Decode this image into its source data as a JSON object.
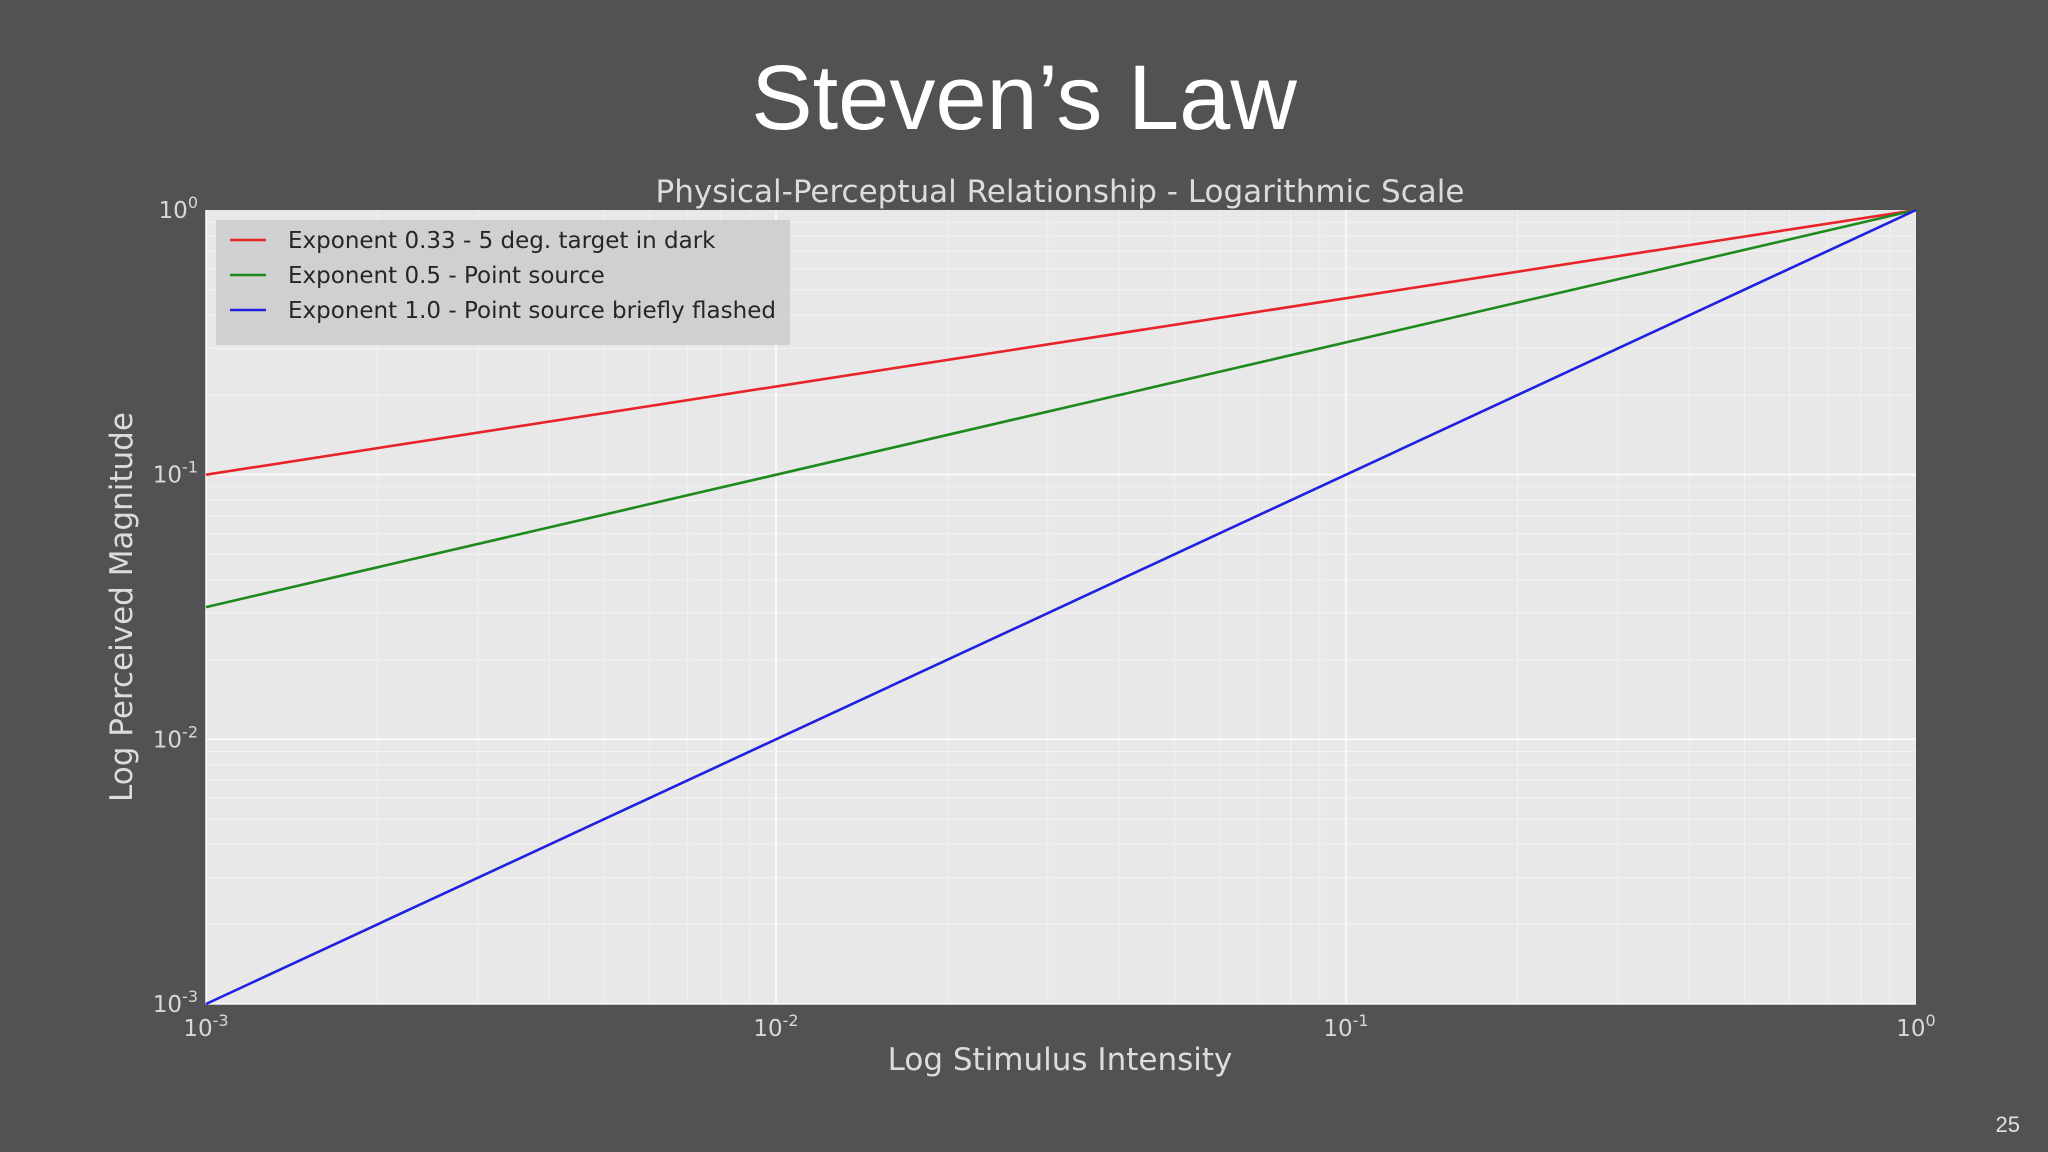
{
  "slide": {
    "title": "Steven’s Law",
    "page_number": "25",
    "background": "#525254"
  },
  "chart_data": {
    "type": "line",
    "title": "Physical-Perceptual Relationship - Logarithmic Scale",
    "xlabel": "Log Stimulus Intensity",
    "ylabel": "Log Perceived Magnitude",
    "xscale": "log",
    "yscale": "log",
    "xlim": [
      0.001,
      1
    ],
    "ylim": [
      0.001,
      1
    ],
    "x_ticks": [
      0.001,
      0.01,
      0.1,
      1
    ],
    "y_ticks": [
      0.001,
      0.01,
      0.1,
      1
    ],
    "grid": true,
    "legend_position": "top-left",
    "plot_background": "#e8e8e8",
    "series": [
      {
        "name": "Exponent 0.33 - 5 deg. target in dark",
        "color": "#e8242a",
        "x": [
          0.001,
          1
        ],
        "y": [
          0.1,
          1
        ]
      },
      {
        "name": "Exponent 0.5 - Point source",
        "color": "#1e8a1e",
        "x": [
          0.001,
          1
        ],
        "y": [
          0.0316,
          1
        ]
      },
      {
        "name": "Exponent 1.0 - Point source briefly flashed",
        "color": "#2020e0",
        "x": [
          0.001,
          1
        ],
        "y": [
          0.001,
          1
        ]
      }
    ]
  }
}
